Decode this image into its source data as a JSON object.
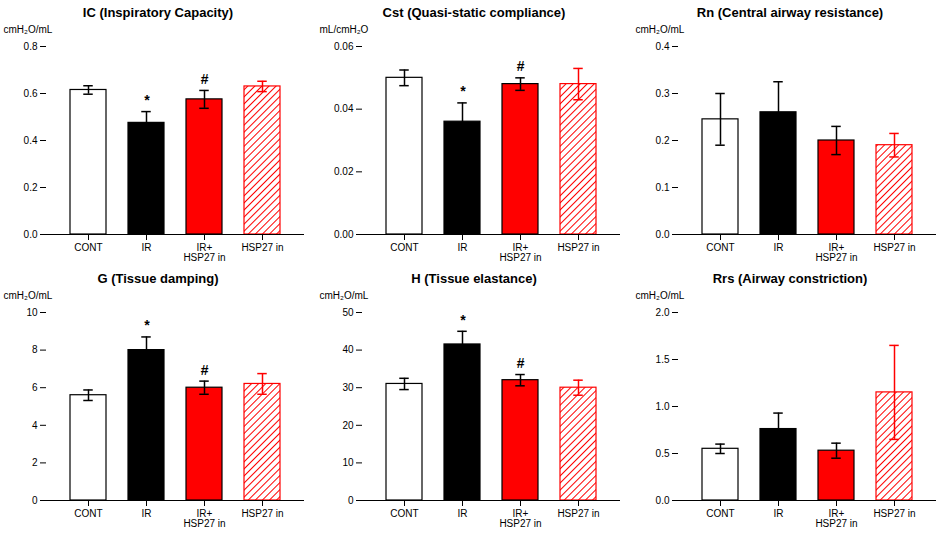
{
  "chart_data": [
    {
      "type": "bar",
      "title": "IC (Inspiratory Capacity)",
      "y_label": "cmH₂O/mL",
      "categories": [
        "CONT",
        "IR",
        "IR+\nHSP27 in",
        "HSP27 in"
      ],
      "values": [
        0.615,
        0.475,
        0.575,
        0.63
      ],
      "errors": [
        0.018,
        0.048,
        0.038,
        0.022
      ],
      "colors": [
        "#FFFFFF",
        "#000000",
        "#FF0000",
        "#FF0000"
      ],
      "ylim": [
        0,
        0.8
      ],
      "yticks": [
        {
          "value": 0,
          "label": "0.0"
        },
        0.2,
        0.4,
        0.6,
        0.8
      ],
      "annotations": [
        {
          "category": "IR",
          "text": "*"
        },
        {
          "category": "IR+\nHSP27 in",
          "text": "#"
        }
      ],
      "grid": false
    },
    {
      "type": "bar",
      "title": "Cst (Quasi-static compliance)",
      "y_label": "mL/cmH₂O",
      "categories": [
        "CONT",
        "IR",
        "IR+\nHSP27 in",
        "HSP27 in"
      ],
      "values": [
        0.05,
        0.036,
        0.048,
        0.048
      ],
      "errors": [
        0.0025,
        0.006,
        0.002,
        0.005
      ],
      "colors": [
        "#FFFFFF",
        "#000000",
        "#FF0000",
        "#FF0000"
      ],
      "ylim": [
        0,
        0.06
      ],
      "yticks": [
        {
          "value": 0,
          "label": "0.00"
        },
        0.02,
        0.04,
        0.06
      ],
      "annotations": [
        {
          "category": "IR",
          "text": "*"
        },
        {
          "category": "IR+\nHSP27 in",
          "text": "#"
        }
      ],
      "grid": false
    },
    {
      "type": "bar",
      "title": "Rn (Central airway resistance)",
      "y_label": "cmH₂O/mL",
      "categories": [
        "CONT",
        "IR",
        "IR+\nHSP27 in",
        "HSP27 in"
      ],
      "values": [
        0.245,
        0.26,
        0.2,
        0.19
      ],
      "errors": [
        0.055,
        0.065,
        0.03,
        0.025
      ],
      "colors": [
        "#FFFFFF",
        "#000000",
        "#FF0000",
        "#FF0000"
      ],
      "ylim": [
        0,
        0.4
      ],
      "yticks": [
        {
          "value": 0,
          "label": "0.0"
        },
        0.1,
        0.2,
        0.3,
        0.4
      ],
      "annotations": [],
      "grid": false
    },
    {
      "type": "bar",
      "title": "G (Tissue damping)",
      "y_label": "cmH₂O/mL",
      "categories": [
        "CONT",
        "IR",
        "IR+\nHSP27 in",
        "HSP27 in"
      ],
      "values": [
        5.6,
        8.0,
        6.0,
        6.2
      ],
      "errors": [
        0.28,
        0.7,
        0.35,
        0.55
      ],
      "colors": [
        "#FFFFFF",
        "#000000",
        "#FF0000",
        "#FF0000"
      ],
      "ylim": [
        0,
        10
      ],
      "yticks": [
        0,
        2,
        4,
        6,
        8,
        10
      ],
      "annotations": [
        {
          "category": "IR",
          "text": "*"
        },
        {
          "category": "IR+\nHSP27 in",
          "text": "#"
        }
      ],
      "grid": false
    },
    {
      "type": "bar",
      "title": "H (Tissue elastance)",
      "y_label": "cmH₂O/mL",
      "categories": [
        "CONT",
        "IR",
        "IR+\nHSP27 in",
        "HSP27 in"
      ],
      "values": [
        31.0,
        41.5,
        32.0,
        30.0
      ],
      "errors": [
        1.5,
        3.5,
        1.5,
        2.0
      ],
      "colors": [
        "#FFFFFF",
        "#000000",
        "#FF0000",
        "#FF0000"
      ],
      "ylim": [
        0,
        50
      ],
      "yticks": [
        0,
        10,
        20,
        30,
        40,
        50
      ],
      "annotations": [
        {
          "category": "IR",
          "text": "*"
        },
        {
          "category": "IR+\nHSP27 in",
          "text": "#"
        }
      ],
      "grid": false
    },
    {
      "type": "bar",
      "title": "Rrs (Airway constriction)",
      "y_label": "cmH₂O/mL",
      "categories": [
        "CONT",
        "IR",
        "IR+\nHSP27 in",
        "HSP27 in"
      ],
      "values": [
        0.55,
        0.76,
        0.53,
        1.15
      ],
      "errors": [
        0.05,
        0.17,
        0.08,
        0.5
      ],
      "colors": [
        "#FFFFFF",
        "#000000",
        "#FF0000",
        "#FF0000"
      ],
      "ylim": [
        0,
        2.0
      ],
      "yticks": [
        {
          "value": 0,
          "label": "0.0"
        },
        0.5,
        {
          "value": 1,
          "label": "1.0"
        },
        1.5,
        {
          "value": 2,
          "label": "2.0"
        }
      ],
      "annotations": [],
      "grid": false
    }
  ]
}
